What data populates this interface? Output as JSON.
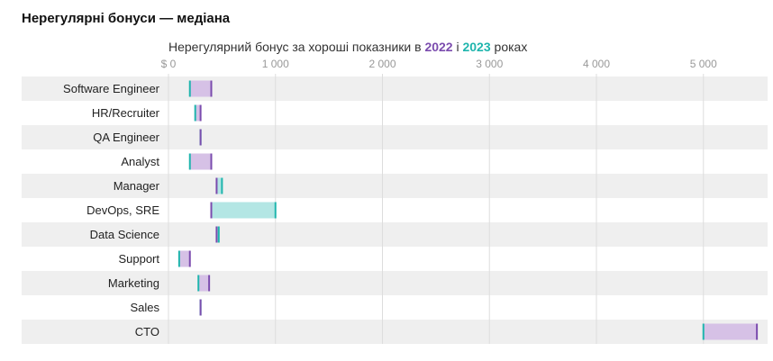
{
  "heading": "Нерегулярні бонуси — медіана",
  "subtitle": {
    "prefix": "Нерегулярний бонус за хороші показники в ",
    "year_a": "2022",
    "joiner": " і ",
    "year_b": "2023",
    "suffix": " роках"
  },
  "colors": {
    "y2022": "#7b4cae",
    "y2022_fill": "#d6c1e6",
    "y2023": "#1fb5ad",
    "y2023_fill": "#b3e6e4",
    "band": "#efefef",
    "grid": "#dddddd",
    "tick": "#999999",
    "label": "#222222"
  },
  "chart_data": {
    "type": "dumbbell",
    "title": "Нерегулярні бонуси — медіана",
    "subtitle": "Нерегулярний бонус за хороші показники в 2022 і 2023 роках",
    "x_ticks": [
      0,
      1000,
      2000,
      3000,
      4000,
      5000
    ],
    "x_tick_labels": [
      "$ 0",
      "1 000",
      "2 000",
      "3 000",
      "4 000",
      "5 000"
    ],
    "xlim": [
      0,
      5600
    ],
    "grid": true,
    "categories": [
      "Software Engineer",
      "HR/Recruiter",
      "QA Engineer",
      "Analyst",
      "Manager",
      "DevOps, SRE",
      "Data Science",
      "Support",
      "Marketing",
      "Sales",
      "CTO"
    ],
    "series": [
      {
        "name": "2022",
        "values": [
          400,
          300,
          300,
          400,
          450,
          400,
          450,
          200,
          380,
          300,
          5500
        ]
      },
      {
        "name": "2023",
        "values": [
          200,
          250,
          300,
          200,
          500,
          1000,
          470,
          100,
          280,
          300,
          5000
        ]
      }
    ]
  }
}
